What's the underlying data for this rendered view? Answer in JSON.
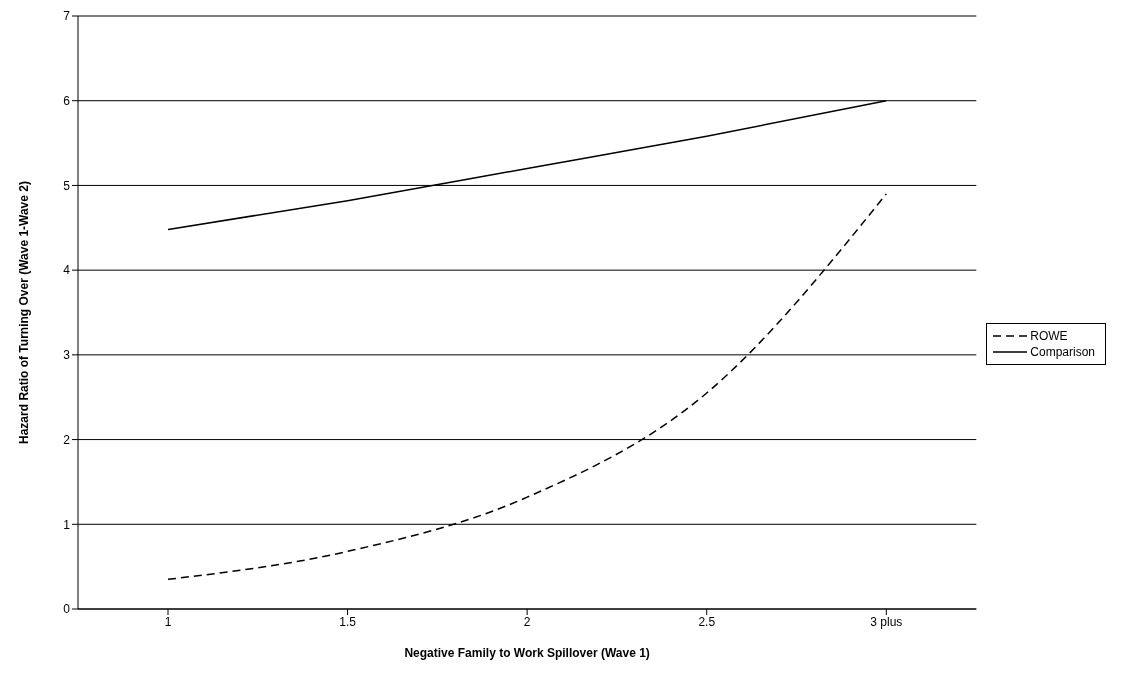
{
  "chart_data": {
    "type": "line",
    "xlabel": "Negative Family to Work Spillover (Wave 1)",
    "ylabel": "Hazard Ratio of Turning Over (Wave 1-Wave 2)",
    "categories": [
      "1",
      "1.5",
      "2",
      "2.5",
      "3 plus"
    ],
    "series": [
      {
        "name": "ROWE",
        "color": "#000000",
        "line_style": "dashed",
        "values": [
          0.35,
          0.68,
          1.32,
          2.55,
          4.9
        ]
      },
      {
        "name": "Comparison",
        "color": "#000000",
        "line_style": "solid",
        "values": [
          4.48,
          4.82,
          5.2,
          5.58,
          6.0
        ]
      }
    ],
    "ylim": [
      0,
      7
    ],
    "yticks": [
      0,
      1,
      2,
      3,
      4,
      5,
      6,
      7
    ],
    "grid": "y",
    "legend": "right",
    "marker": "none"
  }
}
